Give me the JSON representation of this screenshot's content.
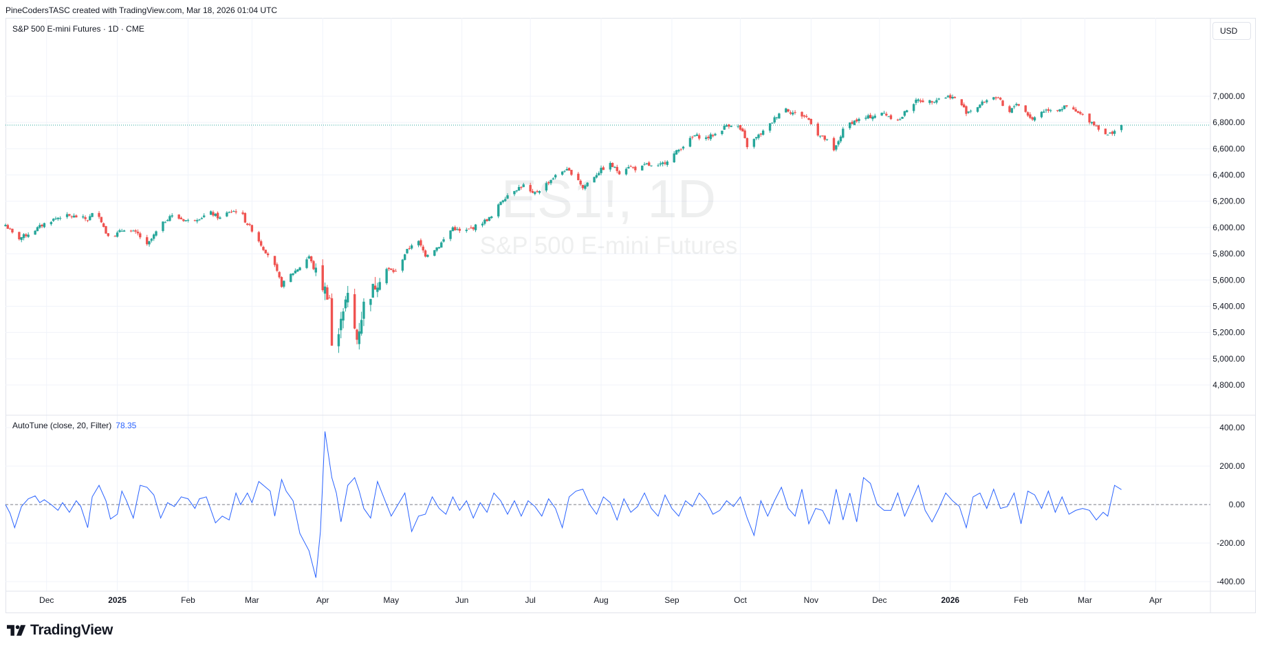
{
  "header": {
    "text": "PineCodersTASC created with TradingView.com, Mar 18, 2026 01:04 UTC"
  },
  "main_legend": {
    "text": "S&P 500 E-mini Futures · 1D · CME"
  },
  "indicator_legend": {
    "name": "AutoTune (close, 20, Filter)",
    "value": "78.35"
  },
  "currency_button": {
    "label": "USD"
  },
  "watermark": {
    "symbol": "ES1!, 1D",
    "description": "S&P 500 E-mini Futures"
  },
  "footer": {
    "brand": "TradingView"
  },
  "colors": {
    "up": "#26a69a",
    "down": "#ef5350",
    "indicator": "#2962ff",
    "last_price_line": "#26a69a",
    "grid": "#f0f3fa"
  },
  "chart_data": [
    {
      "type": "candlestick",
      "title": "S&P 500 E-mini Futures",
      "y_ticks": [
        "4,800.00",
        "5,000.00",
        "5,200.00",
        "5,400.00",
        "5,600.00",
        "5,800.00",
        "6,000.00",
        "6,200.00",
        "6,400.00",
        "6,600.00",
        "6,800.00",
        "7,000.00"
      ],
      "ylim": [
        4680,
        7220
      ],
      "last_price": 6780,
      "x_months": [
        {
          "label": "Dec",
          "day": 38,
          "bold": false
        },
        {
          "label": "2025",
          "day": 69,
          "bold": true
        },
        {
          "label": "Feb",
          "day": 100,
          "bold": false
        },
        {
          "label": "Mar",
          "day": 128,
          "bold": false
        },
        {
          "label": "Apr",
          "day": 159,
          "bold": false
        },
        {
          "label": "May",
          "day": 189,
          "bold": false
        },
        {
          "label": "Jun",
          "day": 220,
          "bold": false
        },
        {
          "label": "Jul",
          "day": 250,
          "bold": false
        },
        {
          "label": "Aug",
          "day": 281,
          "bold": false
        },
        {
          "label": "Sep",
          "day": 312,
          "bold": false
        },
        {
          "label": "Oct",
          "day": 342,
          "bold": false
        },
        {
          "label": "Nov",
          "day": 373,
          "bold": false
        },
        {
          "label": "Dec",
          "day": 403,
          "bold": false
        },
        {
          "label": "2026",
          "day": 434,
          "bold": true
        },
        {
          "label": "Feb",
          "day": 465,
          "bold": false
        },
        {
          "label": "Mar",
          "day": 493,
          "bold": false
        },
        {
          "label": "Apr",
          "day": 524,
          "bold": false
        }
      ],
      "x_start_day": 20,
      "x_end_day": 548,
      "close_anchors": [
        [
          20,
          6020
        ],
        [
          25,
          5910
        ],
        [
          31,
          5960
        ],
        [
          38,
          6040
        ],
        [
          45,
          6090
        ],
        [
          52,
          6080
        ],
        [
          56,
          6060
        ],
        [
          60,
          6140
        ],
        [
          64,
          5960
        ],
        [
          67,
          5930
        ],
        [
          72,
          5990
        ],
        [
          78,
          5950
        ],
        [
          82,
          5860
        ],
        [
          87,
          5990
        ],
        [
          92,
          6090
        ],
        [
          100,
          6050
        ],
        [
          106,
          6080
        ],
        [
          110,
          6110
        ],
        [
          114,
          6070
        ],
        [
          118,
          6120
        ],
        [
          123,
          6130
        ],
        [
          125,
          6050
        ],
        [
          129,
          5960
        ],
        [
          133,
          5840
        ],
        [
          137,
          5750
        ],
        [
          141,
          5560
        ],
        [
          145,
          5640
        ],
        [
          149,
          5700
        ],
        [
          153,
          5780
        ],
        [
          155,
          5690
        ],
        [
          158,
          5580
        ],
        [
          162,
          5470
        ],
        [
          163,
          5100
        ],
        [
          165,
          4960
        ],
        [
          167,
          5350
        ],
        [
          170,
          5470
        ],
        [
          172,
          5290
        ],
        [
          174,
          5150
        ],
        [
          177,
          5410
        ],
        [
          181,
          5530
        ],
        [
          186,
          5690
        ],
        [
          191,
          5660
        ],
        [
          195,
          5800
        ],
        [
          200,
          5920
        ],
        [
          204,
          5790
        ],
        [
          210,
          5860
        ],
        [
          216,
          6000
        ],
        [
          220,
          5960
        ],
        [
          225,
          6000
        ],
        [
          230,
          6050
        ],
        [
          234,
          6090
        ],
        [
          237,
          6200
        ],
        [
          242,
          6280
        ],
        [
          247,
          6320
        ],
        [
          251,
          6250
        ],
        [
          255,
          6300
        ],
        [
          260,
          6380
        ],
        [
          265,
          6440
        ],
        [
          270,
          6400
        ],
        [
          273,
          6300
        ],
        [
          276,
          6360
        ],
        [
          281,
          6440
        ],
        [
          285,
          6480
        ],
        [
          289,
          6420
        ],
        [
          293,
          6470
        ],
        [
          297,
          6440
        ],
        [
          301,
          6480
        ],
        [
          305,
          6450
        ],
        [
          309,
          6500
        ],
        [
          313,
          6560
        ],
        [
          318,
          6640
        ],
        [
          322,
          6700
        ],
        [
          327,
          6680
        ],
        [
          332,
          6720
        ],
        [
          336,
          6780
        ],
        [
          340,
          6790
        ],
        [
          343,
          6720
        ],
        [
          345,
          6620
        ],
        [
          350,
          6700
        ],
        [
          354,
          6760
        ],
        [
          357,
          6830
        ],
        [
          361,
          6920
        ],
        [
          364,
          6880
        ],
        [
          368,
          6860
        ],
        [
          371,
          6840
        ],
        [
          373,
          6800
        ],
        [
          376,
          6710
        ],
        [
          380,
          6660
        ],
        [
          383,
          6580
        ],
        [
          388,
          6780
        ],
        [
          392,
          6810
        ],
        [
          396,
          6830
        ],
        [
          400,
          6850
        ],
        [
          405,
          6870
        ],
        [
          408,
          6840
        ],
        [
          412,
          6820
        ],
        [
          416,
          6930
        ],
        [
          420,
          6970
        ],
        [
          425,
          6960
        ],
        [
          430,
          6990
        ],
        [
          434,
          7000
        ],
        [
          438,
          6960
        ],
        [
          441,
          6880
        ],
        [
          445,
          6910
        ],
        [
          449,
          6960
        ],
        [
          453,
          7000
        ],
        [
          456,
          6960
        ],
        [
          459,
          6850
        ],
        [
          463,
          6950
        ],
        [
          467,
          6880
        ],
        [
          470,
          6820
        ],
        [
          473,
          6880
        ],
        [
          477,
          6900
        ],
        [
          481,
          6900
        ],
        [
          485,
          6920
        ],
        [
          489,
          6880
        ],
        [
          493,
          6840
        ],
        [
          497,
          6790
        ],
        [
          501,
          6730
        ],
        [
          503,
          6700
        ],
        [
          506,
          6740
        ],
        [
          509,
          6780
        ]
      ]
    },
    {
      "type": "line",
      "name": "AutoTune (close, 20, Filter)",
      "last_value": 78.35,
      "y_ticks": [
        "-400.00",
        "-200.00",
        "0.00",
        "200.00",
        "400.00"
      ],
      "ylim": [
        -440,
        440
      ],
      "zero_line": 0,
      "anchors": [
        [
          20,
          0
        ],
        [
          22,
          -45
        ],
        [
          24,
          -120
        ],
        [
          27,
          -10
        ],
        [
          30,
          30
        ],
        [
          33,
          45
        ],
        [
          35,
          10
        ],
        [
          37,
          25
        ],
        [
          40,
          0
        ],
        [
          43,
          -30
        ],
        [
          45,
          10
        ],
        [
          48,
          -40
        ],
        [
          51,
          20
        ],
        [
          53,
          -10
        ],
        [
          56,
          -120
        ],
        [
          58,
          40
        ],
        [
          61,
          100
        ],
        [
          64,
          20
        ],
        [
          66,
          -75
        ],
        [
          69,
          -50
        ],
        [
          71,
          70
        ],
        [
          73,
          20
        ],
        [
          76,
          -70
        ],
        [
          79,
          100
        ],
        [
          82,
          90
        ],
        [
          85,
          50
        ],
        [
          88,
          -70
        ],
        [
          91,
          10
        ],
        [
          94,
          -10
        ],
        [
          97,
          40
        ],
        [
          100,
          30
        ],
        [
          103,
          -20
        ],
        [
          105,
          30
        ],
        [
          108,
          40
        ],
        [
          112,
          -95
        ],
        [
          115,
          -60
        ],
        [
          118,
          -80
        ],
        [
          121,
          60
        ],
        [
          123,
          0
        ],
        [
          126,
          60
        ],
        [
          128,
          10
        ],
        [
          131,
          120
        ],
        [
          133,
          100
        ],
        [
          136,
          70
        ],
        [
          138,
          -60
        ],
        [
          141,
          130
        ],
        [
          143,
          70
        ],
        [
          146,
          20
        ],
        [
          149,
          -150
        ],
        [
          153,
          -240
        ],
        [
          156,
          -380
        ],
        [
          158,
          -140
        ],
        [
          160,
          380
        ],
        [
          163,
          140
        ],
        [
          165,
          60
        ],
        [
          167,
          -90
        ],
        [
          170,
          100
        ],
        [
          173,
          140
        ],
        [
          175,
          70
        ],
        [
          177,
          -20
        ],
        [
          180,
          -70
        ],
        [
          183,
          120
        ],
        [
          186,
          30
        ],
        [
          189,
          -60
        ],
        [
          192,
          0
        ],
        [
          195,
          60
        ],
        [
          198,
          -140
        ],
        [
          201,
          -60
        ],
        [
          204,
          -50
        ],
        [
          207,
          40
        ],
        [
          210,
          -20
        ],
        [
          213,
          -50
        ],
        [
          216,
          40
        ],
        [
          219,
          -30
        ],
        [
          222,
          20
        ],
        [
          225,
          -70
        ],
        [
          228,
          10
        ],
        [
          231,
          -40
        ],
        [
          234,
          60
        ],
        [
          237,
          20
        ],
        [
          240,
          -50
        ],
        [
          243,
          20
        ],
        [
          246,
          -60
        ],
        [
          249,
          20
        ],
        [
          252,
          -10
        ],
        [
          255,
          -60
        ],
        [
          258,
          30
        ],
        [
          261,
          -20
        ],
        [
          264,
          -120
        ],
        [
          267,
          40
        ],
        [
          270,
          70
        ],
        [
          273,
          80
        ],
        [
          276,
          0
        ],
        [
          279,
          -50
        ],
        [
          282,
          40
        ],
        [
          285,
          10
        ],
        [
          288,
          -80
        ],
        [
          291,
          30
        ],
        [
          294,
          -40
        ],
        [
          297,
          -10
        ],
        [
          300,
          60
        ],
        [
          303,
          -20
        ],
        [
          306,
          -60
        ],
        [
          309,
          50
        ],
        [
          312,
          -20
        ],
        [
          315,
          -60
        ],
        [
          318,
          20
        ],
        [
          321,
          -10
        ],
        [
          324,
          60
        ],
        [
          327,
          20
        ],
        [
          330,
          -50
        ],
        [
          333,
          -30
        ],
        [
          336,
          20
        ],
        [
          339,
          -10
        ],
        [
          342,
          40
        ],
        [
          345,
          -70
        ],
        [
          348,
          -160
        ],
        [
          351,
          20
        ],
        [
          354,
          -60
        ],
        [
          357,
          20
        ],
        [
          360,
          90
        ],
        [
          363,
          -20
        ],
        [
          366,
          -60
        ],
        [
          369,
          80
        ],
        [
          372,
          -100
        ],
        [
          375,
          -20
        ],
        [
          378,
          -30
        ],
        [
          381,
          -100
        ],
        [
          384,
          80
        ],
        [
          387,
          -80
        ],
        [
          390,
          60
        ],
        [
          393,
          -90
        ],
        [
          396,
          140
        ],
        [
          399,
          110
        ],
        [
          402,
          0
        ],
        [
          405,
          -30
        ],
        [
          408,
          -30
        ],
        [
          411,
          60
        ],
        [
          414,
          -60
        ],
        [
          417,
          20
        ],
        [
          420,
          100
        ],
        [
          423,
          -30
        ],
        [
          426,
          -90
        ],
        [
          429,
          -20
        ],
        [
          432,
          60
        ],
        [
          435,
          20
        ],
        [
          438,
          -10
        ],
        [
          441,
          -120
        ],
        [
          444,
          40
        ],
        [
          447,
          60
        ],
        [
          450,
          -20
        ],
        [
          453,
          80
        ],
        [
          456,
          -20
        ],
        [
          459,
          -10
        ],
        [
          462,
          60
        ],
        [
          465,
          -100
        ],
        [
          468,
          70
        ],
        [
          471,
          50
        ],
        [
          474,
          -20
        ],
        [
          477,
          70
        ],
        [
          480,
          -40
        ],
        [
          483,
          40
        ],
        [
          486,
          -50
        ],
        [
          489,
          -30
        ],
        [
          492,
          -20
        ],
        [
          495,
          -30
        ],
        [
          498,
          -80
        ],
        [
          501,
          -40
        ],
        [
          503,
          -60
        ],
        [
          506,
          100
        ],
        [
          509,
          78
        ]
      ]
    }
  ]
}
